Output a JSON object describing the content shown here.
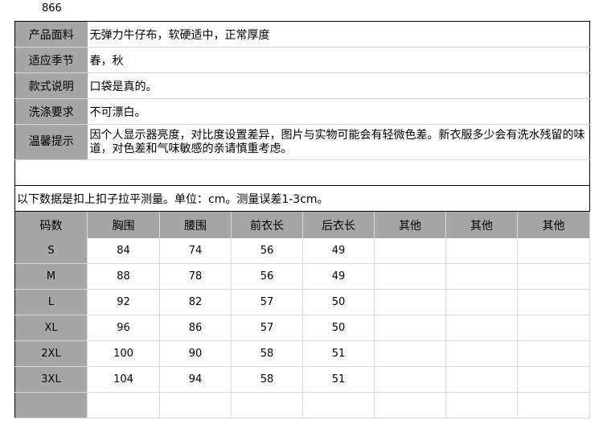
{
  "product_code": "866",
  "info": [
    {
      "label": "产品面料",
      "value": "无弹力牛仔布，软硬适中，正常厚度"
    },
    {
      "label": "适应季节",
      "value": "春，秋"
    },
    {
      "label": "款式说明",
      "value": "口袋是真的。"
    },
    {
      "label": "洗涤要求",
      "value": "不可漂白。"
    },
    {
      "label": "温馨提示",
      "value": "因个人显示器亮度，对比度设置差异，图片与实物可能会有轻微色差。新衣服多少会有洗水残留的味道，对色差和气味敏感的亲请慎重考虑。"
    }
  ],
  "measure_note": "以下数据是扣上扣子拉平测量。单位：cm。测量误差1-3cm。",
  "size_table": {
    "headers": [
      "码数",
      "胸围",
      "腰围",
      "前衣长",
      "后衣长",
      "其他",
      "其他",
      "其他"
    ],
    "rows": [
      [
        "S",
        "84",
        "74",
        "56",
        "49",
        "",
        "",
        ""
      ],
      [
        "M",
        "88",
        "78",
        "56",
        "49",
        "",
        "",
        ""
      ],
      [
        "L",
        "92",
        "82",
        "57",
        "50",
        "",
        "",
        ""
      ],
      [
        "XL",
        "96",
        "86",
        "57",
        "50",
        "",
        "",
        ""
      ],
      [
        "2XL",
        "100",
        "90",
        "58",
        "51",
        "",
        "",
        ""
      ],
      [
        "3XL",
        "104",
        "94",
        "58",
        "51",
        "",
        "",
        ""
      ],
      [
        "",
        "",
        "",
        "",
        "",
        "",
        "",
        ""
      ]
    ]
  },
  "colors": {
    "header_gray": "#a6a6a6",
    "grid": "#d9d9d9"
  }
}
